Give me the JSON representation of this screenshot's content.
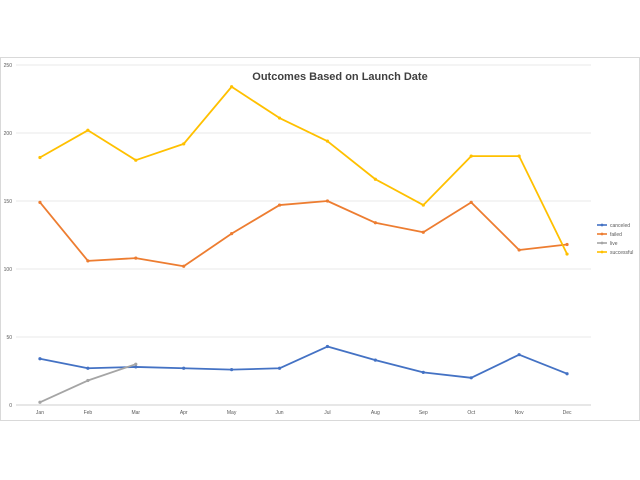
{
  "chart_data": {
    "type": "line",
    "title": "Outcomes Based on Launch Date",
    "xlabel": "",
    "ylabel": "",
    "categories": [
      "Jan",
      "Feb",
      "Mar",
      "Apr",
      "May",
      "Jun",
      "Jul",
      "Aug",
      "Sep",
      "Oct",
      "Nov",
      "Dec"
    ],
    "yticks": [
      0,
      50,
      100,
      150,
      200,
      250
    ],
    "ylim": [
      0,
      250
    ],
    "grid": "horizontal",
    "legend_position": "right",
    "series": [
      {
        "name": "canceled",
        "color": "#4472c4",
        "values": [
          34,
          27,
          28,
          27,
          26,
          27,
          43,
          33,
          24,
          20,
          37,
          23
        ]
      },
      {
        "name": "failed",
        "color": "#ed7d31",
        "values": [
          149,
          106,
          108,
          102,
          126,
          147,
          150,
          134,
          127,
          149,
          114,
          118
        ]
      },
      {
        "name": "live",
        "color": "#a5a5a5",
        "values": [
          2,
          18,
          30,
          null,
          null,
          null,
          null,
          null,
          null,
          null,
          null,
          null
        ]
      },
      {
        "name": "successful",
        "color": "#ffc000",
        "values": [
          182,
          202,
          180,
          192,
          234,
          211,
          194,
          166,
          147,
          183,
          183,
          111
        ]
      }
    ]
  }
}
